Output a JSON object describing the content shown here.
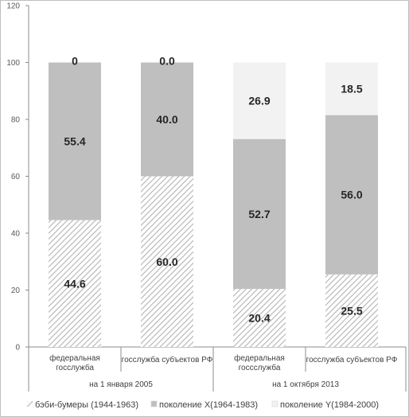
{
  "chart_data": {
    "type": "bar",
    "stacked": true,
    "title": "",
    "xlabel": "",
    "ylabel": "",
    "ylim": [
      0,
      120
    ],
    "yticks": [
      0,
      20,
      40,
      60,
      80,
      100,
      120
    ],
    "grid": false,
    "legend_position": "bottom",
    "groups": [
      {
        "label": "на 1 января 2005",
        "categories": [
          "федеральная\nгосслужба",
          "госслужба субъектов РФ"
        ]
      },
      {
        "label": "на 1 октября 2013",
        "categories": [
          "федеральная\nгоссслужба",
          "госслужба субъектов РФ"
        ]
      }
    ],
    "series": [
      {
        "name": "бэби-бумеры (1944-1963)",
        "pattern": "hatch",
        "color": "#a6a6a6",
        "values": [
          44.6,
          60.0,
          20.4,
          25.5
        ],
        "labels": [
          "44.6",
          "60.0",
          "20.4",
          "25.5"
        ]
      },
      {
        "name": "поколение X(1964-1983)",
        "pattern": "solid",
        "color": "#bfbfbf",
        "values": [
          55.4,
          40.0,
          52.7,
          56.0
        ],
        "labels": [
          "55.4",
          "40.0",
          "52.7",
          "56.0"
        ]
      },
      {
        "name": "поколение Y(1984-2000)",
        "pattern": "solid",
        "color": "#f2f2f2",
        "values": [
          0,
          0.0,
          26.9,
          18.5
        ],
        "labels": [
          "0",
          "0.0",
          "26.9",
          "18.5"
        ]
      }
    ]
  }
}
